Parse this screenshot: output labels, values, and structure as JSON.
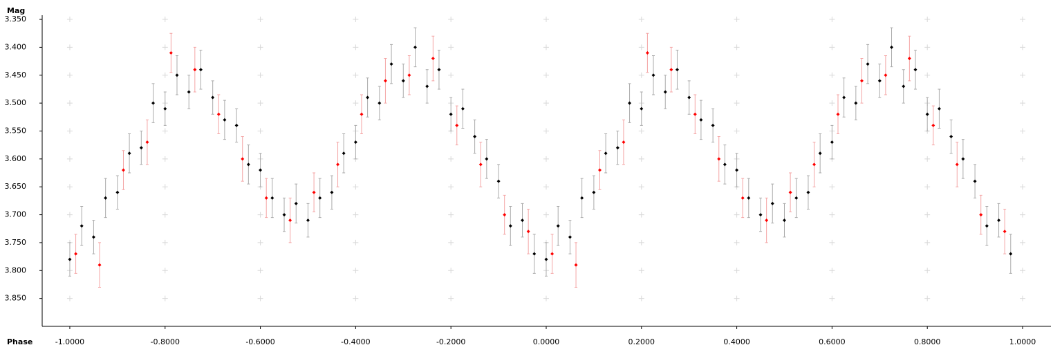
{
  "chart_data": {
    "type": "scatter",
    "x_label": "Phase",
    "y_label": "Mag",
    "xlim": [
      -1.058,
      1.0595
    ],
    "ylim": [
      3.3425,
      3.9
    ],
    "y_inverted": true,
    "grid": true,
    "xticks": [
      {
        "value": -1.0,
        "label": "-1.0000"
      },
      {
        "value": -0.8,
        "label": "-0.8000"
      },
      {
        "value": -0.6,
        "label": "-0.6000"
      },
      {
        "value": -0.4,
        "label": "-0.4000"
      },
      {
        "value": -0.2,
        "label": "-0.2000"
      },
      {
        "value": 0,
        "label": "0.0000"
      },
      {
        "value": 0.2,
        "label": "0.2000"
      },
      {
        "value": 0.4,
        "label": "0.4000"
      },
      {
        "value": 0.6,
        "label": "0.6000"
      },
      {
        "value": 0.8,
        "label": "0.8000"
      },
      {
        "value": 1.0,
        "label": "1.0000"
      }
    ],
    "yticks": [
      {
        "value": 3.35,
        "label": "3.350"
      },
      {
        "value": 3.4,
        "label": "3.400"
      },
      {
        "value": 3.45,
        "label": "3.450"
      },
      {
        "value": 3.5,
        "label": "3.500"
      },
      {
        "value": 3.55,
        "label": "3.550"
      },
      {
        "value": 3.6,
        "label": "3.600"
      },
      {
        "value": 3.65,
        "label": "3.650"
      },
      {
        "value": 3.7,
        "label": "3.700"
      },
      {
        "value": 3.75,
        "label": "3.750"
      },
      {
        "value": 3.8,
        "label": "3.800"
      },
      {
        "value": 3.85,
        "label": "3.850"
      }
    ],
    "series": [
      {
        "color": "#000000",
        "error_color": "#aaaaaa",
        "x": [
          -1,
          -0.975,
          -0.95,
          -0.925,
          -0.9,
          -0.875,
          -0.85,
          -0.825,
          -0.8,
          -0.775,
          -0.75,
          -0.725,
          -0.7,
          -0.675,
          -0.65,
          -0.625,
          -0.6,
          -0.575,
          -0.55,
          -0.525,
          -0.5,
          -0.475,
          -0.45,
          -0.425,
          -0.4,
          -0.375,
          -0.35,
          -0.325,
          -0.3,
          -0.275,
          -0.25,
          -0.225,
          -0.2,
          -0.175,
          -0.15,
          -0.125,
          -0.1,
          -0.075,
          -0.05,
          -0.025,
          0,
          0.025,
          0.05,
          0.075,
          0.1,
          0.125,
          0.15,
          0.175,
          0.2,
          0.225,
          0.25,
          0.275,
          0.3,
          0.325,
          0.35,
          0.375,
          0.4,
          0.425,
          0.45,
          0.475,
          0.5,
          0.525,
          0.55,
          0.575,
          0.6,
          0.625,
          0.65,
          0.675,
          0.7,
          0.725,
          0.75,
          0.775,
          0.8,
          0.825,
          0.85,
          0.875,
          0.9,
          0.925,
          0.95,
          0.975
        ],
        "values": [
          3.78,
          3.72,
          3.74,
          3.67,
          3.66,
          3.59,
          3.58,
          3.5,
          3.51,
          3.45,
          3.48,
          3.44,
          3.49,
          3.53,
          3.54,
          3.61,
          3.62,
          3.67,
          3.7,
          3.68,
          3.71,
          3.67,
          3.66,
          3.59,
          3.57,
          3.49,
          3.5,
          3.43,
          3.46,
          3.4,
          3.47,
          3.44,
          3.52,
          3.51,
          3.56,
          3.6,
          3.64,
          3.72,
          3.71,
          3.77,
          3.78,
          3.72,
          3.74,
          3.67,
          3.66,
          3.59,
          3.58,
          3.5,
          3.51,
          3.45,
          3.48,
          3.44,
          3.49,
          3.53,
          3.54,
          3.61,
          3.62,
          3.67,
          3.7,
          3.68,
          3.71,
          3.67,
          3.66,
          3.59,
          3.57,
          3.49,
          3.5,
          3.43,
          3.46,
          3.4,
          3.47,
          3.44,
          3.52,
          3.51,
          3.56,
          3.6,
          3.64,
          3.72,
          3.71,
          3.77
        ],
        "errors": [
          0.03,
          0.035,
          0.03,
          0.035,
          0.03,
          0.035,
          0.03,
          0.035,
          0.03,
          0.035,
          0.03,
          0.035,
          0.03,
          0.035,
          0.03,
          0.035,
          0.03,
          0.035,
          0.03,
          0.035,
          0.03,
          0.035,
          0.03,
          0.035,
          0.03,
          0.035,
          0.03,
          0.035,
          0.03,
          0.035,
          0.03,
          0.035,
          0.03,
          0.035,
          0.03,
          0.035,
          0.03,
          0.035,
          0.03,
          0.035,
          0.03,
          0.035,
          0.03,
          0.035,
          0.03,
          0.035,
          0.03,
          0.035,
          0.03,
          0.035,
          0.03,
          0.035,
          0.03,
          0.035,
          0.03,
          0.035,
          0.03,
          0.035,
          0.03,
          0.035,
          0.03,
          0.035,
          0.03,
          0.035,
          0.03,
          0.035,
          0.03,
          0.035,
          0.03,
          0.035,
          0.03,
          0.035,
          0.03,
          0.035,
          0.03,
          0.035,
          0.03,
          0.035,
          0.03,
          0.035
        ]
      },
      {
        "color": "#ff0000",
        "error_color": "#f4a4a4",
        "x": [
          -0.9875,
          -0.9375,
          -0.8875,
          -0.8375,
          -0.7875,
          -0.7375,
          -0.6875,
          -0.6375,
          -0.5875,
          -0.5375,
          -0.4875,
          -0.4375,
          -0.3875,
          -0.3375,
          -0.2875,
          -0.2375,
          -0.1875,
          -0.1375,
          -0.0875,
          -0.0375,
          0.0125,
          0.0625,
          0.1125,
          0.1625,
          0.2125,
          0.2625,
          0.3125,
          0.3625,
          0.4125,
          0.4625,
          0.5125,
          0.5625,
          0.6125,
          0.6625,
          0.7125,
          0.7625,
          0.8125,
          0.8625,
          0.9125,
          0.9625
        ],
        "values": [
          3.77,
          3.79,
          3.62,
          3.57,
          3.41,
          3.44,
          3.52,
          3.6,
          3.67,
          3.71,
          3.66,
          3.61,
          3.52,
          3.46,
          3.45,
          3.42,
          3.54,
          3.61,
          3.7,
          3.73,
          3.77,
          3.79,
          3.62,
          3.57,
          3.41,
          3.44,
          3.52,
          3.6,
          3.67,
          3.71,
          3.66,
          3.61,
          3.52,
          3.46,
          3.45,
          3.42,
          3.54,
          3.61,
          3.7,
          3.73
        ],
        "errors": [
          0.035,
          0.04,
          0.035,
          0.04,
          0.035,
          0.04,
          0.035,
          0.04,
          0.035,
          0.04,
          0.035,
          0.04,
          0.035,
          0.04,
          0.035,
          0.04,
          0.035,
          0.04,
          0.035,
          0.04,
          0.035,
          0.04,
          0.035,
          0.04,
          0.035,
          0.04,
          0.035,
          0.04,
          0.035,
          0.04,
          0.035,
          0.04,
          0.035,
          0.04,
          0.035,
          0.04,
          0.035,
          0.04,
          0.035,
          0.04
        ]
      }
    ]
  }
}
